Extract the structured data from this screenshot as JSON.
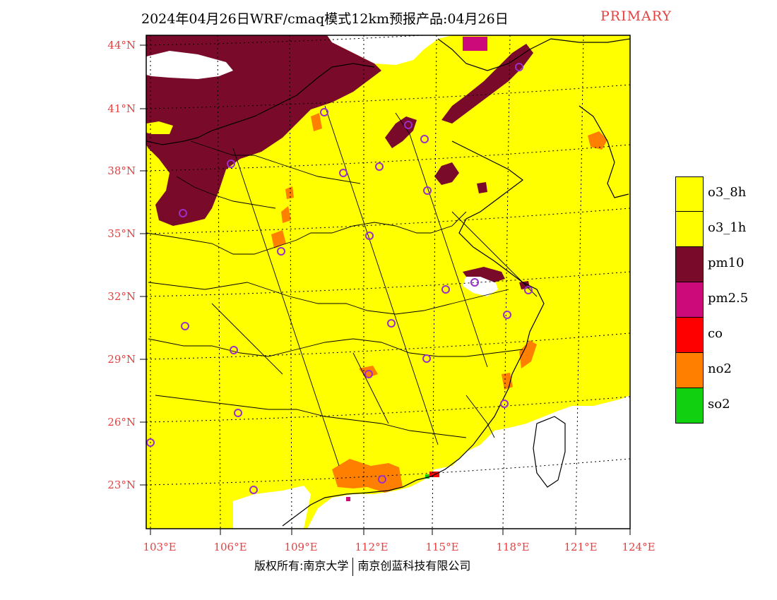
{
  "title": "2024年04月26日WRF/cmaq模式12km预报产品:04月26日",
  "primary_label": "PRIMARY",
  "lat_labels": [
    "44°N",
    "41°N",
    "38°N",
    "35°N",
    "32°N",
    "29°N",
    "26°N",
    "23°N"
  ],
  "lon_labels": [
    "103°E",
    "106°E",
    "109°E",
    "112°E",
    "115°E",
    "118°E",
    "121°E",
    "124°E"
  ],
  "legend": [
    {
      "label": "o3_8h",
      "color": "#ffff00"
    },
    {
      "label": "o3_1h",
      "color": "#ffff00"
    },
    {
      "label": "pm10",
      "color": "#7a0a2a"
    },
    {
      "label": "pm2.5",
      "color": "#cc0a7a"
    },
    {
      "label": "co",
      "color": "#ff0000"
    },
    {
      "label": "no2",
      "color": "#ff7f00"
    },
    {
      "label": "so2",
      "color": "#10d010"
    }
  ],
  "copyright_left": "版权所有:南京大学",
  "copyright_right": "南京创蓝科技有限公司",
  "colors": {
    "accent_red": "#e84040",
    "ozone": "#ffff00",
    "pm10": "#7a0a2a",
    "no2": "#ff7f00",
    "pm25": "#cc0a7a",
    "station": "#9b30c8"
  }
}
